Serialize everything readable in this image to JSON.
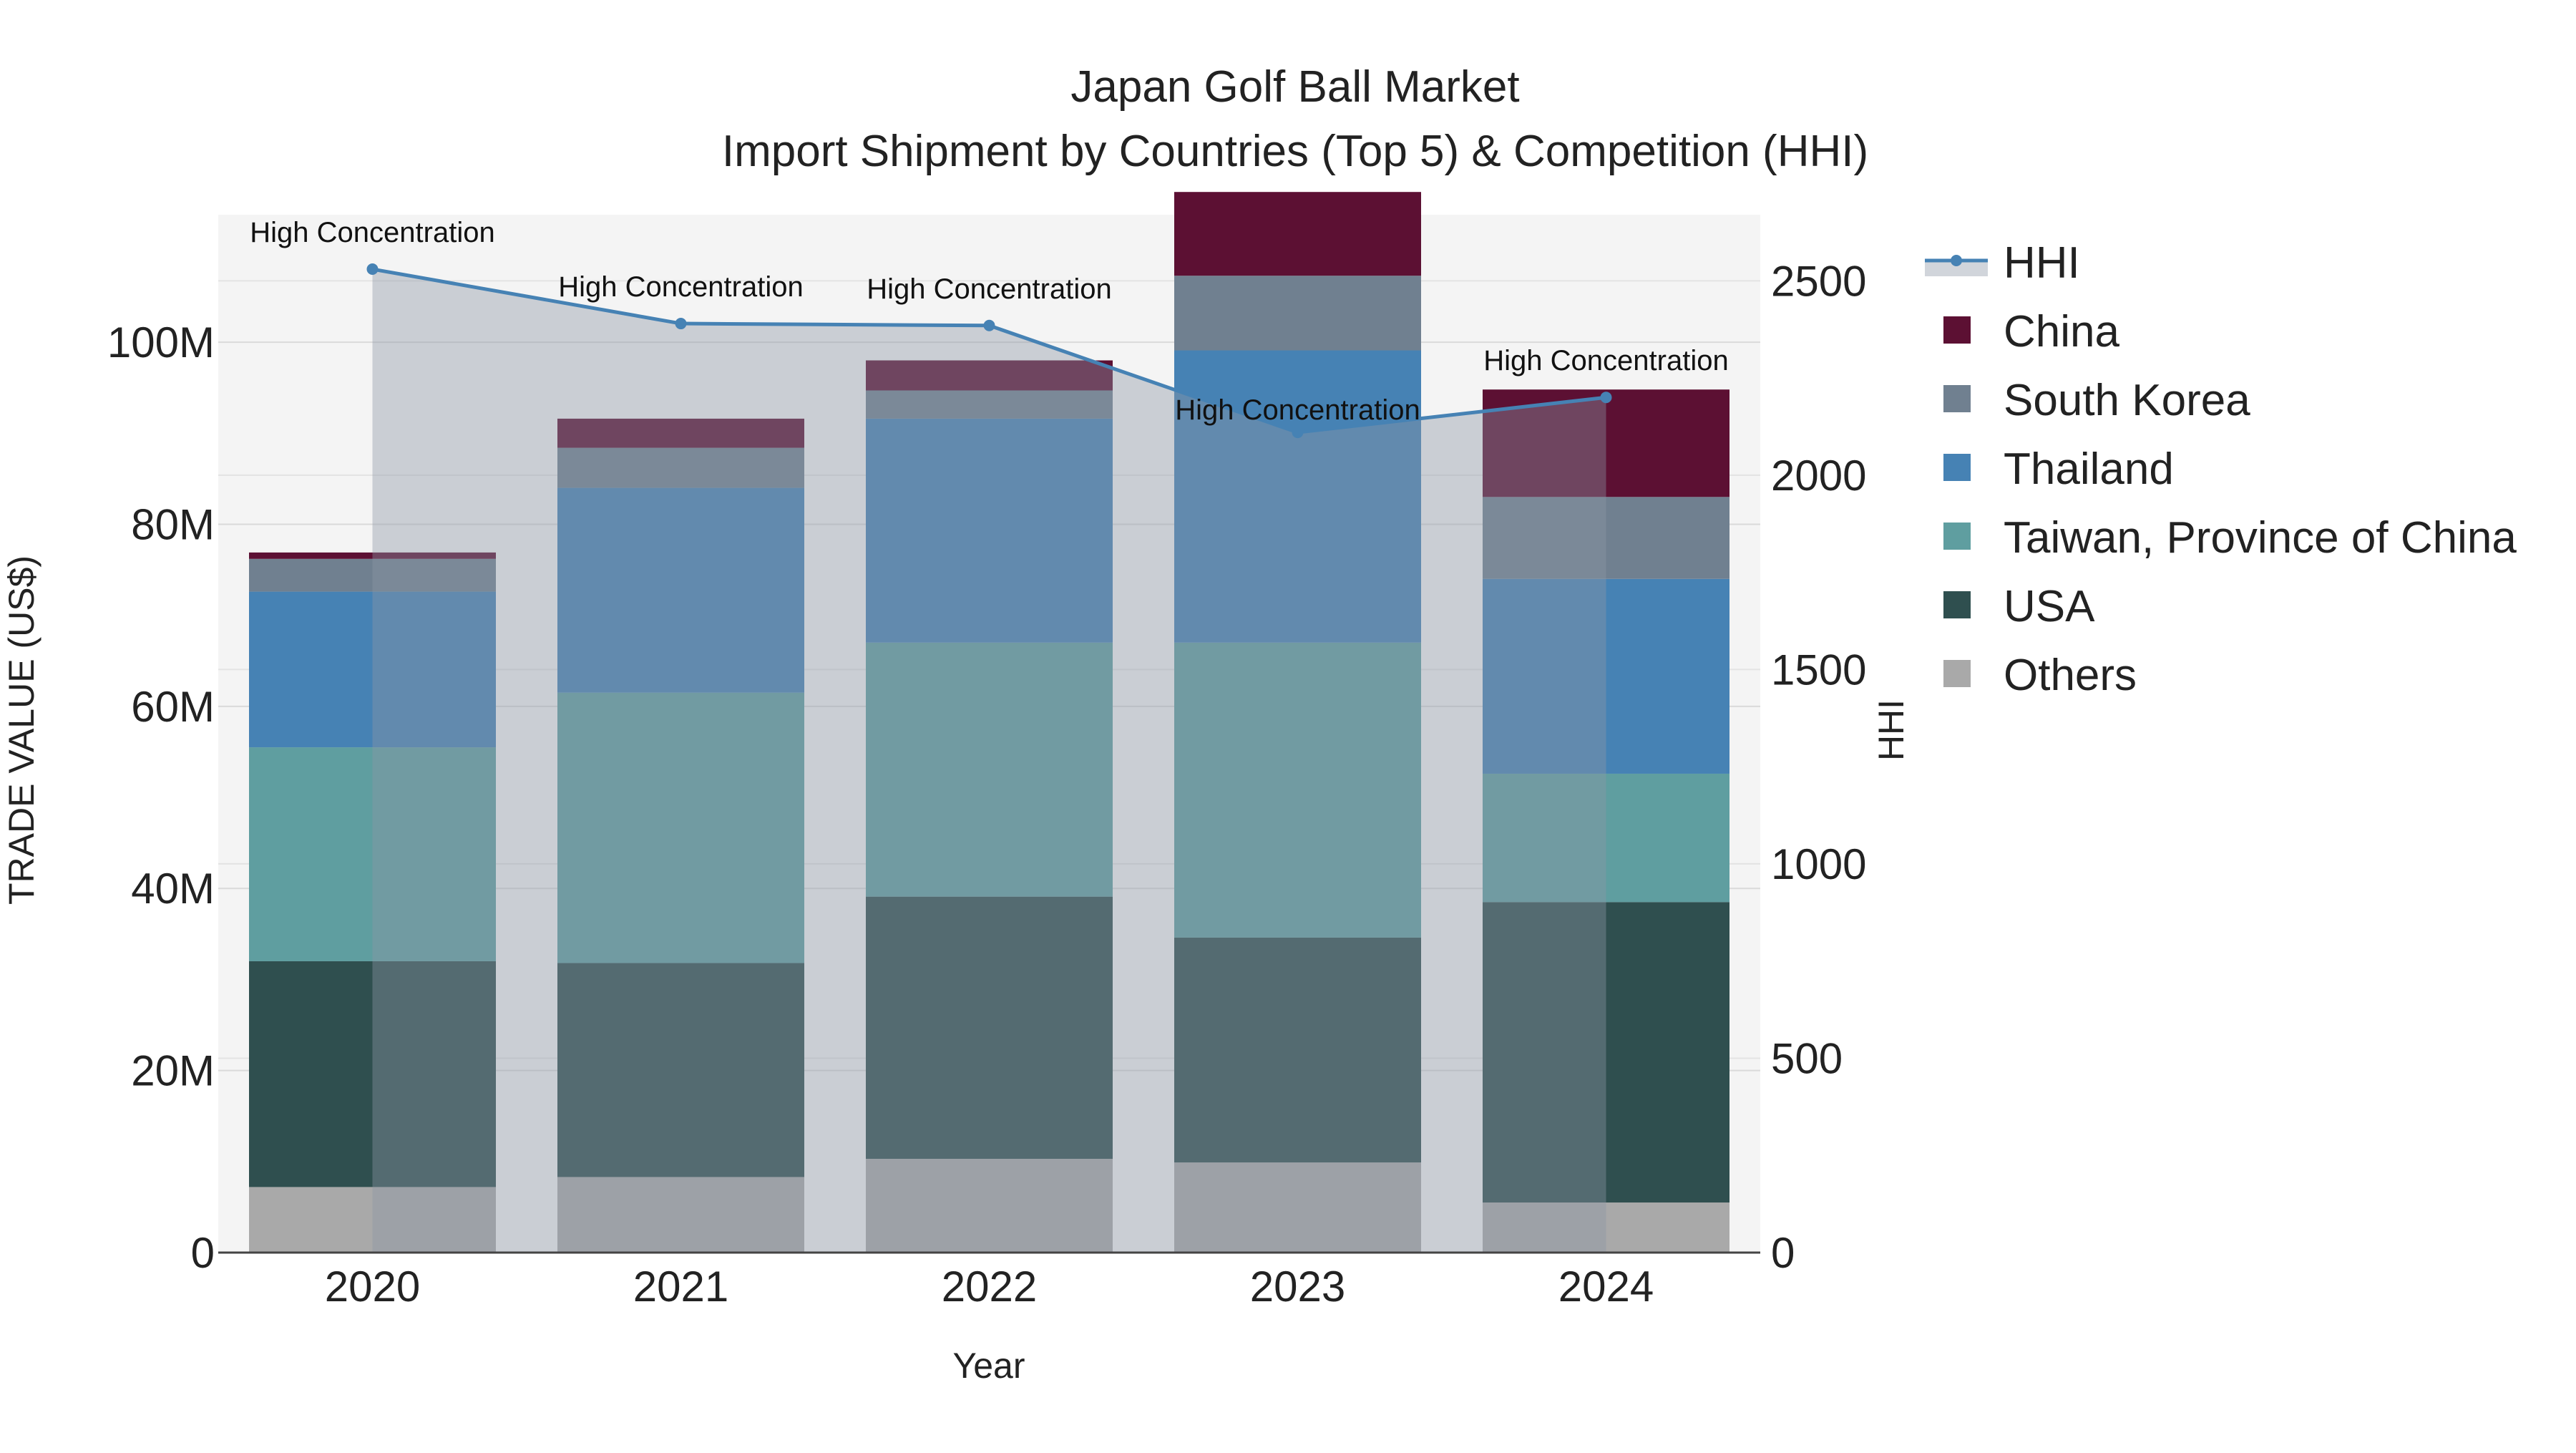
{
  "chart_data": {
    "type": "bar",
    "title_line1": "Japan Golf Ball Market",
    "title_line2": "Import Shipment by Countries (Top 5) & Competition (HHI)",
    "xlabel": "Year",
    "ylabel": "TRADE VALUE (US$)",
    "y2label": "HHI",
    "categories": [
      "2020",
      "2021",
      "2022",
      "2023",
      "2024"
    ],
    "ylim": [
      0,
      114
    ],
    "y_unit": "M",
    "y_ticks": [
      0,
      20,
      40,
      60,
      80,
      100
    ],
    "y_tick_labels": [
      "0",
      "20M",
      "40M",
      "60M",
      "80M",
      "100M"
    ],
    "y2lim": [
      0,
      2670
    ],
    "y2_ticks": [
      0,
      500,
      1000,
      1500,
      2000,
      2500
    ],
    "y2_tick_labels": [
      "0",
      "500",
      "1000",
      "1500",
      "2000",
      "2500"
    ],
    "stack_order": [
      "Others",
      "USA",
      "Taiwan, Province of China",
      "Thailand",
      "South Korea",
      "China"
    ],
    "series": [
      {
        "name": "Others",
        "color": "#A9A9A9",
        "values": [
          7.2,
          8.3,
          10.3,
          9.9,
          5.5
        ]
      },
      {
        "name": "USA",
        "color": "#2F4F4F",
        "values": [
          24.8,
          23.5,
          28.8,
          24.7,
          33.0
        ]
      },
      {
        "name": "Taiwan, Province of China",
        "color": "#5F9EA0",
        "values": [
          23.5,
          29.7,
          27.9,
          32.4,
          14.1
        ]
      },
      {
        "name": "Thailand",
        "color": "#4682B4",
        "values": [
          17.1,
          22.5,
          24.6,
          32.1,
          21.4
        ]
      },
      {
        "name": "South Korea",
        "color": "#708090",
        "values": [
          3.6,
          4.4,
          3.1,
          8.2,
          9.0
        ]
      },
      {
        "name": "China",
        "color": "#5C1033",
        "values": [
          0.7,
          3.2,
          3.3,
          9.2,
          11.8
        ]
      }
    ],
    "hhi": {
      "name": "HHI",
      "color": "#4682B4",
      "values": [
        2530,
        2390,
        2385,
        2110,
        2200
      ],
      "labels": [
        "High Concentration",
        "High Concentration",
        "High Concentration",
        "High Concentration",
        "High Concentration"
      ]
    },
    "legend": [
      "HHI",
      "China",
      "South Korea",
      "Thailand",
      "Taiwan, Province of China",
      "USA",
      "Others"
    ],
    "legend_position": "right",
    "grid": true
  }
}
